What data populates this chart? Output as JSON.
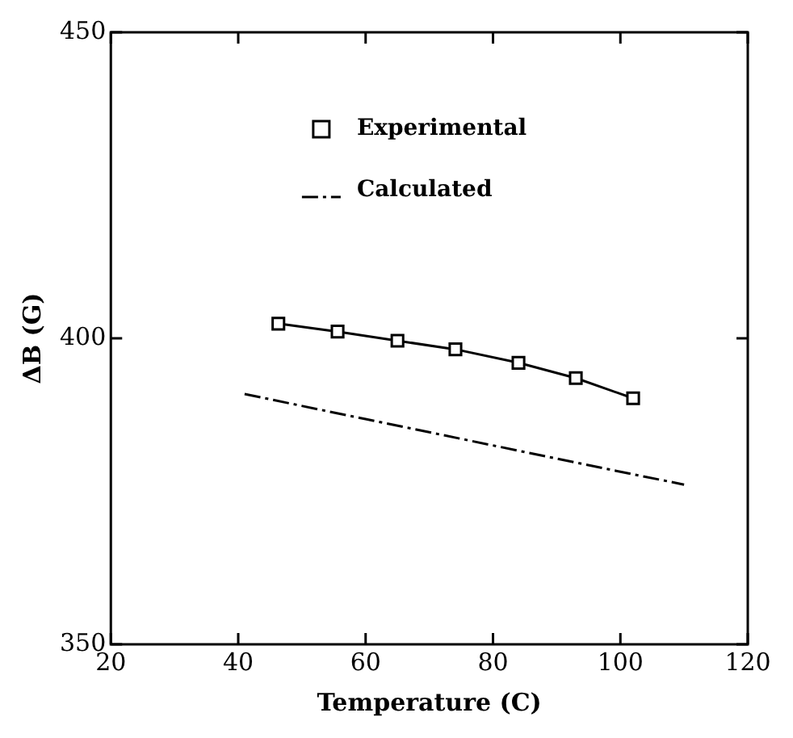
{
  "chart_data": {
    "type": "scatter",
    "xlabel": "Temperature (C)",
    "ylabel": "ΔB (G)",
    "xlim": [
      20,
      120
    ],
    "xticks": [
      20,
      40,
      60,
      80,
      100,
      120
    ],
    "ylim": [
      350,
      450
    ],
    "yticks": [
      350,
      400,
      450
    ],
    "grid": false,
    "legend": "top",
    "series": [
      {
        "name": "Experimental",
        "type": "line",
        "marker": "square",
        "line_style": "solid",
        "color": "#000000",
        "x": [
          46.3,
          55.6,
          65,
          74.1,
          84,
          93,
          102
        ],
        "values": [
          402.4,
          401.1,
          399.6,
          398.2,
          396,
          393.5,
          390.2
        ]
      },
      {
        "name": "Calculated",
        "type": "line",
        "marker": "none",
        "line_style": "dashed",
        "color": "#000000",
        "x": [
          41,
          60,
          80,
          100,
          110
        ],
        "values": [
          390.9,
          386.8,
          382.5,
          378.2,
          376.1
        ]
      }
    ]
  }
}
